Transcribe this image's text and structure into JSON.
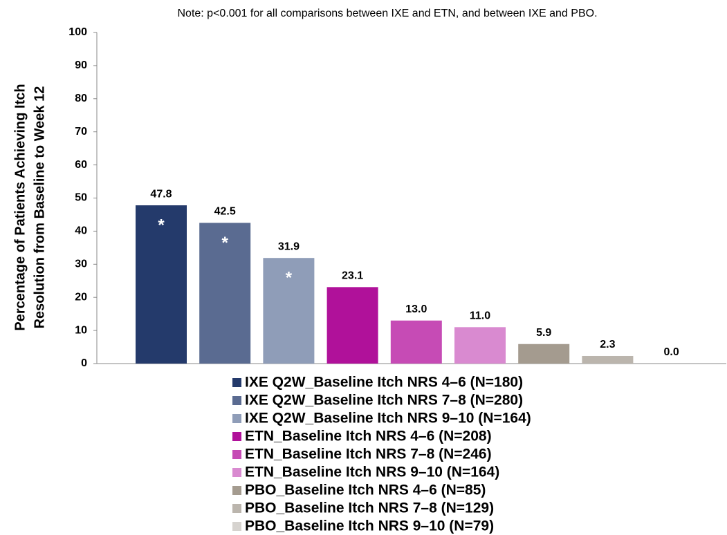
{
  "chart_data": {
    "type": "bar",
    "note": "Note: p<0.001 for all comparisons between IXE and ETN, and between IXE and PBO.",
    "ylabel": [
      "Percentage of Patients Achieving Itch",
      "Resolution from Baseline to Week 12"
    ],
    "ylim": [
      0,
      100
    ],
    "yticks": [
      0,
      10,
      20,
      30,
      40,
      50,
      60,
      70,
      80,
      90,
      100
    ],
    "series": [
      {
        "name": "IXE Q2W_Baseline Itch NRS 4–6 (N=180)",
        "color": "#243a6b",
        "values": [
          47.8
        ],
        "value_labels": [
          "47.8"
        ],
        "annotation": "*"
      },
      {
        "name": "IXE Q2W_Baseline Itch NRS 7–8 (N=280)",
        "color": "#5a6b91",
        "values": [
          42.5
        ],
        "value_labels": [
          "42.5"
        ],
        "annotation": "*"
      },
      {
        "name": "IXE Q2W_Baseline Itch NRS 9–10 (N=164)",
        "color": "#8f9db8",
        "values": [
          31.9
        ],
        "value_labels": [
          "31.9"
        ],
        "annotation": "*"
      },
      {
        "name": "ETN_Baseline Itch NRS 4–6 (N=208)",
        "color": "#b0119a",
        "values": [
          23.1
        ],
        "value_labels": [
          "23.1"
        ]
      },
      {
        "name": "ETN_Baseline Itch NRS 7–8 (N=246)",
        "color": "#c64bb5",
        "values": [
          13.0
        ],
        "value_labels": [
          "13.0"
        ]
      },
      {
        "name": "ETN_Baseline Itch NRS 9–10 (N=164)",
        "color": "#d98ad0",
        "values": [
          11.0
        ],
        "value_labels": [
          "11.0"
        ]
      },
      {
        "name": "PBO_Baseline Itch NRS 4–6 (N=85)",
        "color": "#a49b8f",
        "values": [
          5.9
        ],
        "value_labels": [
          "5.9"
        ]
      },
      {
        "name": "PBO_Baseline Itch NRS 7–8 (N=129)",
        "color": "#bbb5ad",
        "values": [
          2.3
        ],
        "value_labels": [
          "2.3"
        ]
      },
      {
        "name": "PBO_Baseline Itch NRS 9–10 (N=79)",
        "color": "#d6d3cf",
        "values": [
          0.0
        ],
        "value_labels": [
          "0.0"
        ]
      }
    ]
  }
}
